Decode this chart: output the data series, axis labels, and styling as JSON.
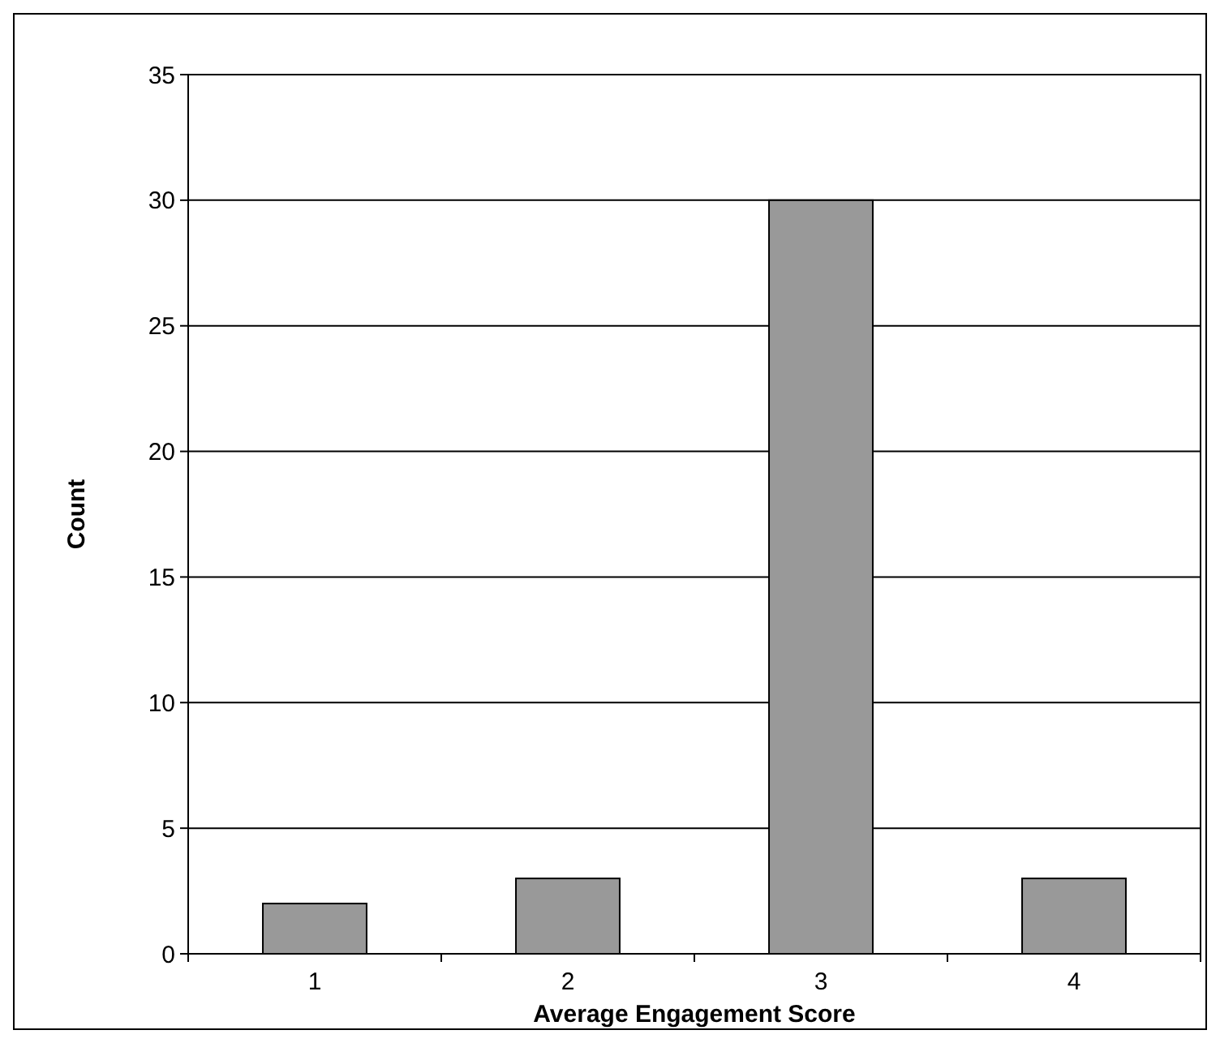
{
  "chart_data": {
    "type": "bar",
    "xlabel": "Average Engagement Score",
    "ylabel": "Count",
    "categories": [
      "1",
      "2",
      "3",
      "4"
    ],
    "values": [
      2,
      3,
      30,
      3
    ],
    "color": "#999999",
    "ylim": [
      0,
      35
    ],
    "yticks": [
      0,
      5,
      10,
      15,
      20,
      25,
      30,
      35
    ],
    "grid": "y"
  }
}
